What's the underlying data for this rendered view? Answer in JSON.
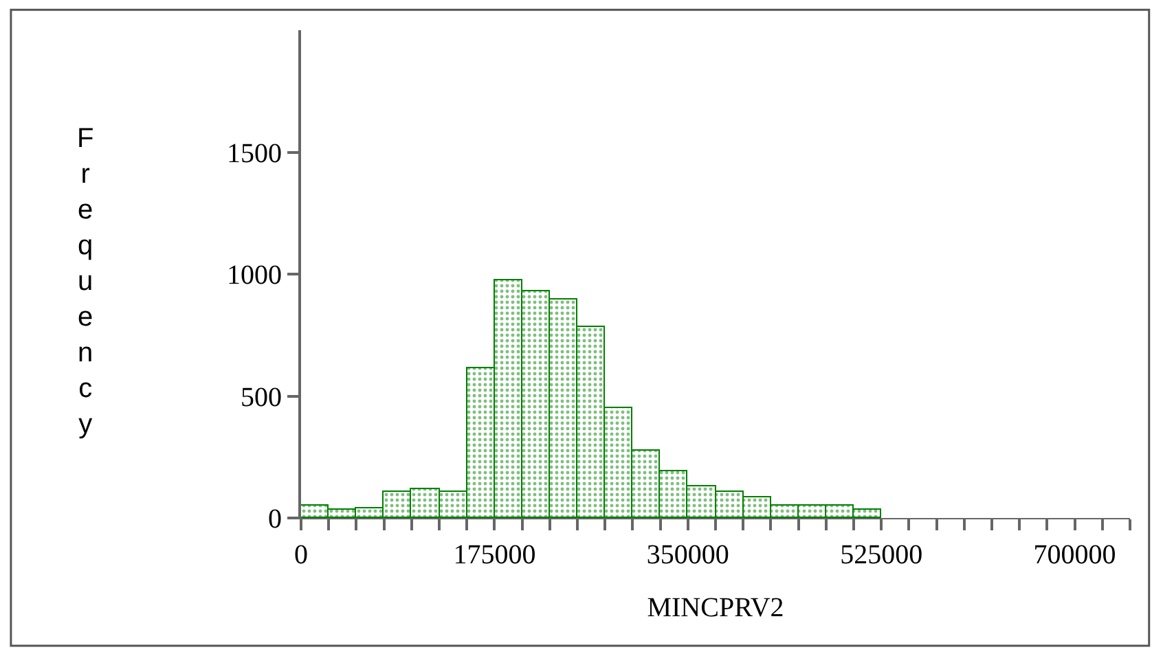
{
  "chart_data": {
    "type": "histogram",
    "xlabel": "MINCPRV2",
    "ylabel": "Frequency",
    "bins": [
      0,
      25000,
      50000,
      75000,
      100000,
      125000,
      150000,
      175000,
      200000,
      225000,
      250000,
      275000,
      300000,
      325000,
      350000,
      375000,
      400000,
      425000,
      450000,
      475000,
      500000,
      525000
    ],
    "values": [
      53,
      36,
      40,
      108,
      119,
      108,
      615,
      977,
      930,
      898,
      785,
      449,
      277,
      191,
      132,
      109,
      85,
      53,
      53,
      53,
      32
    ],
    "color": "#008000",
    "xlim": [
      0,
      750000
    ],
    "xticks": [
      0,
      {
        "value": 25000,
        "label": null
      },
      {
        "value": 50000,
        "label": null
      },
      {
        "value": 75000,
        "label": null
      },
      {
        "value": 100000,
        "label": null
      },
      {
        "value": 125000,
        "label": null
      },
      {
        "value": 150000,
        "label": null
      },
      175000,
      {
        "value": 200000,
        "label": null
      },
      {
        "value": 225000,
        "label": null
      },
      {
        "value": 250000,
        "label": null
      },
      {
        "value": 275000,
        "label": null
      },
      {
        "value": 300000,
        "label": null
      },
      {
        "value": 325000,
        "label": null
      },
      350000,
      {
        "value": 375000,
        "label": null
      },
      {
        "value": 400000,
        "label": null
      },
      {
        "value": 425000,
        "label": null
      },
      {
        "value": 450000,
        "label": null
      },
      {
        "value": 475000,
        "label": null
      },
      {
        "value": 500000,
        "label": null
      },
      525000,
      {
        "value": 550000,
        "label": null
      },
      {
        "value": 575000,
        "label": null
      },
      {
        "value": 600000,
        "label": null
      },
      {
        "value": 625000,
        "label": null
      },
      {
        "value": 650000,
        "label": null
      },
      {
        "value": 675000,
        "label": null
      },
      700000,
      {
        "value": 725000,
        "label": null
      },
      {
        "value": 750000,
        "label": null
      }
    ],
    "ylim": [
      0,
      2000
    ],
    "yticks": [
      0,
      500,
      1000,
      1500
    ]
  }
}
